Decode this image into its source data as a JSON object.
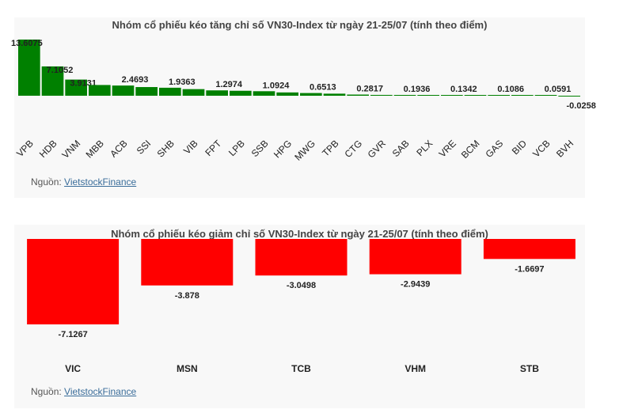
{
  "colors": {
    "positive": "#008000",
    "negative": "#ff0000"
  },
  "source_label": "Nguồn:",
  "source_link": "VietstockFinance",
  "chart_data": [
    {
      "type": "bar",
      "title": "Nhóm cổ phiếu kéo tăng chỉ số VN30-Index từ ngày 21-25/07 (tính theo điểm)",
      "categories": [
        "VPB",
        "HDB",
        "VNM",
        "MBB",
        "ACB",
        "SSI",
        "SHB",
        "VIB",
        "FPT",
        "LPB",
        "SSB",
        "HPG",
        "MWG",
        "TPB",
        "CTG",
        "GVR",
        "SAB",
        "PLX",
        "VRE",
        "BCM",
        "GAS",
        "BID",
        "VCB",
        "BVH"
      ],
      "values": [
        13.6075,
        7.1052,
        3.9131,
        2.6,
        2.4693,
        2.1,
        1.9363,
        1.6,
        1.2974,
        1.2,
        1.0924,
        0.8,
        0.6513,
        0.5,
        0.2817,
        0.2,
        0.1936,
        0.15,
        0.1342,
        0.12,
        0.1086,
        0.08,
        0.0591,
        -0.0258
      ],
      "data_labels": [
        "13.6075",
        "7.1052",
        "3.9131",
        "",
        "2.4693",
        "",
        "1.9363",
        "",
        "1.2974",
        "",
        "1.0924",
        "",
        "0.6513",
        "",
        "0.2817",
        "",
        "0.1936",
        "",
        "0.1342",
        "",
        "0.1086",
        "",
        "0.0591",
        "-0.0258"
      ]
    },
    {
      "type": "bar",
      "title": "Nhóm cổ phiếu kéo giảm chỉ số VN30-Index từ ngày 21-25/07 (tính theo điểm)",
      "categories": [
        "VIC",
        "MSN",
        "TCB",
        "VHM",
        "STB"
      ],
      "values": [
        -7.1267,
        -3.878,
        -3.0498,
        -2.9439,
        -1.6697
      ],
      "data_labels": [
        "-7.1267",
        "-3.878",
        "-3.0498",
        "-2.9439",
        "-1.6697"
      ]
    }
  ]
}
